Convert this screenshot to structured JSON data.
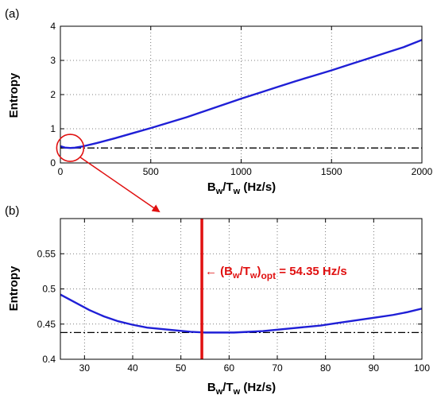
{
  "chart_data": [
    {
      "type": "line",
      "panel_label": "(a)",
      "xlabel_main": "B",
      "xlabel_sub1": "w",
      "xlabel_mid": "/T",
      "xlabel_sub2": "w",
      "xlabel_tail": " (Hz/s)",
      "ylabel": "Entropy",
      "xlim": [
        0,
        2000
      ],
      "ylim": [
        0,
        4
      ],
      "xticks": [
        0,
        500,
        1000,
        1500,
        2000
      ],
      "yticks": [
        0,
        1,
        2,
        3,
        4
      ],
      "grid": true,
      "series": [
        {
          "style": "solid",
          "color": "#1f1fd6",
          "x": [
            0,
            25,
            54.35,
            80,
            120,
            200,
            300,
            400,
            500,
            600,
            700,
            800,
            900,
            1000,
            1100,
            1200,
            1300,
            1400,
            1500,
            1600,
            1700,
            1800,
            1900,
            2000
          ],
          "y": [
            0.49,
            0.45,
            0.438,
            0.445,
            0.48,
            0.58,
            0.72,
            0.87,
            1.02,
            1.18,
            1.34,
            1.52,
            1.7,
            1.88,
            2.05,
            2.22,
            2.39,
            2.55,
            2.71,
            2.88,
            3.05,
            3.22,
            3.39,
            3.6
          ]
        },
        {
          "style": "dashdot",
          "color": "#000000",
          "x": [
            0,
            2000
          ],
          "y": [
            0.438,
            0.438
          ]
        }
      ],
      "highlight_circle": {
        "x": 54.35,
        "y": 0.44
      }
    },
    {
      "type": "line",
      "panel_label": "(b)",
      "xlabel_main": "B",
      "xlabel_sub1": "w",
      "xlabel_mid": "/T",
      "xlabel_sub2": "w",
      "xlabel_tail": " (Hz/s)",
      "ylabel": "Entropy",
      "xlim": [
        25,
        100
      ],
      "ylim": [
        0.4,
        0.6
      ],
      "xticks": [
        30,
        40,
        50,
        60,
        70,
        80,
        90,
        100
      ],
      "yticks": [
        0.4,
        0.45,
        0.5,
        0.55
      ],
      "grid": true,
      "series": [
        {
          "style": "solid",
          "color": "#1f1fd6",
          "x": [
            25,
            28,
            31,
            34,
            37,
            40,
            43,
            46,
            49,
            52,
            55,
            58,
            61,
            64,
            67,
            70,
            73,
            76,
            79,
            82,
            85,
            88,
            91,
            94,
            97,
            100
          ],
          "y": [
            0.492,
            0.481,
            0.47,
            0.461,
            0.454,
            0.449,
            0.445,
            0.443,
            0.441,
            0.439,
            0.438,
            0.438,
            0.438,
            0.439,
            0.44,
            0.442,
            0.444,
            0.446,
            0.448,
            0.451,
            0.454,
            0.457,
            0.46,
            0.463,
            0.467,
            0.472
          ]
        },
        {
          "style": "dashdot",
          "color": "#000000",
          "x": [
            25,
            100
          ],
          "y": [
            0.438,
            0.438
          ]
        }
      ],
      "vline": {
        "x": 54.35,
        "color": "#e01010"
      },
      "annotation": {
        "arrow": "←",
        "paren_open": "(B",
        "sub1": "w",
        "mid": "/T",
        "sub2": "w",
        "paren_close": ")",
        "sub3": "opt",
        "value": " = 54.35 Hz/s",
        "color": "#e01010"
      }
    }
  ],
  "colors": {
    "curve": "#1f1fd6",
    "highlight": "#e01010",
    "reference": "#000000"
  }
}
